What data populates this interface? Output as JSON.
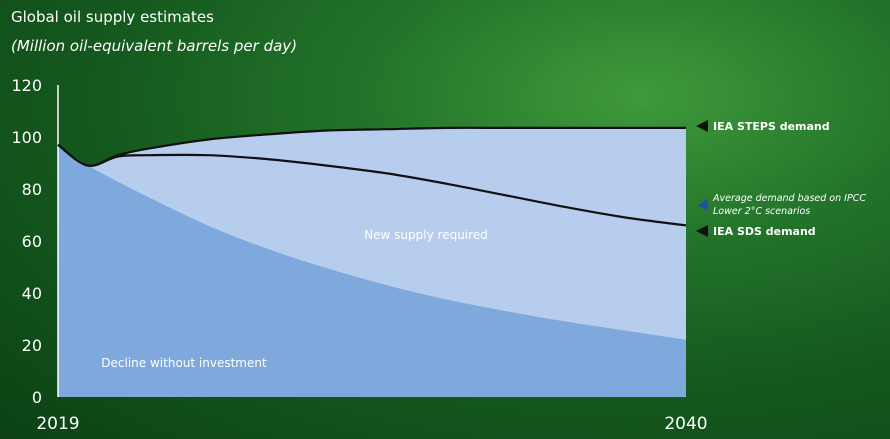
{
  "chart_data": {
    "type": "area",
    "title": "Global oil supply estimates",
    "subtitle": "(Million oil-equivalent barrels per day)",
    "xlabel": "",
    "ylabel": "",
    "x_range": [
      2019,
      2040
    ],
    "ylim": [
      0,
      120
    ],
    "yticks": [
      0,
      20,
      40,
      60,
      80,
      100,
      120
    ],
    "yticks_labels": [
      "0",
      "20",
      "40",
      "60",
      "80",
      "100",
      "120"
    ],
    "xticks": [
      2019,
      2040
    ],
    "xtick_labels": [
      "2019",
      "2040"
    ],
    "grid": false,
    "series": [
      {
        "name": "IEA STEPS demand",
        "x": [
          2019,
          2020,
          2021,
          2022,
          2024,
          2026,
          2028,
          2030,
          2032,
          2034,
          2036,
          2038,
          2040
        ],
        "values": [
          97,
          89,
          93,
          95.5,
          99,
          101,
          102.5,
          103,
          103.5,
          103.5,
          103.5,
          103.5,
          103.5
        ]
      },
      {
        "name": "IEA SDS demand",
        "x": [
          2019,
          2020,
          2021,
          2022,
          2024,
          2026,
          2028,
          2030,
          2032,
          2034,
          2036,
          2038,
          2040
        ],
        "values": [
          97,
          89,
          92.5,
          93,
          93,
          91.5,
          89,
          86,
          82,
          77.5,
          73,
          69,
          66
        ]
      },
      {
        "name": "Decline without investment",
        "x": [
          2019,
          2020,
          2022,
          2024,
          2026,
          2028,
          2030,
          2032,
          2034,
          2036,
          2038,
          2040
        ],
        "values": [
          97,
          89,
          77,
          66,
          57,
          49.5,
          43,
          37.5,
          33,
          29,
          25.5,
          22
        ]
      }
    ],
    "annotations": [
      "New supply required",
      "Decline without investment"
    ],
    "legend_labels": [
      "IEA STEPS demand",
      "Average demand based on IPCC",
      "Lower 2°C scenarios",
      "IEA SDS demand"
    ],
    "colors": {
      "background": "#1a5e22",
      "decline_fill": "#7fa9dc",
      "new_supply_fill": "#b6cdee",
      "line": "#111111",
      "ipcc_marker": "#1f4fa8"
    }
  }
}
